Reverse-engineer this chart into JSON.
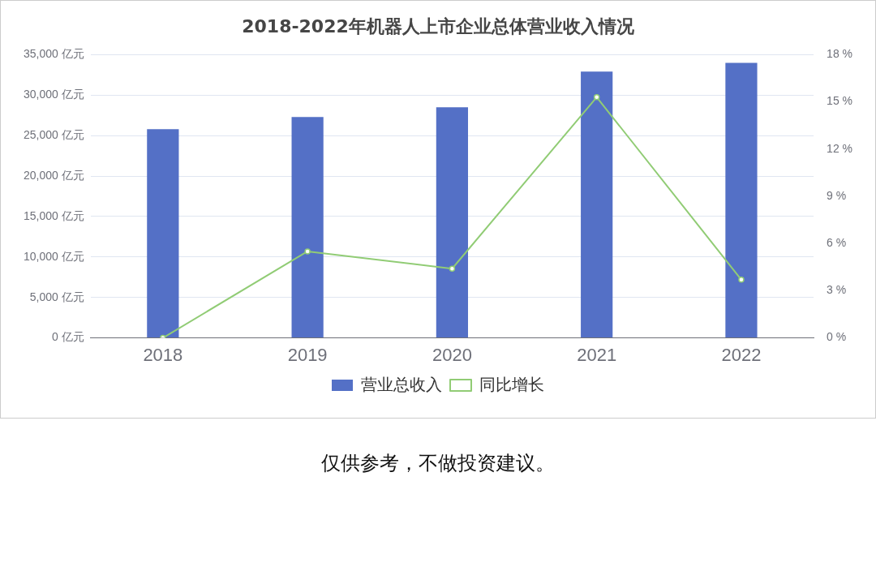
{
  "chart_data": {
    "type": "bar",
    "title": "2018-2022年机器人上市企业总体营业收入情况",
    "categories": [
      "2018",
      "2019",
      "2020",
      "2021",
      "2022"
    ],
    "series": [
      {
        "name": "营业总收入",
        "color": "#5470c6",
        "values": [
          25800,
          27300,
          28500,
          32900,
          34000
        ]
      },
      {
        "name": "同比增长",
        "type": "line",
        "axis": "y2",
        "color": "#91cc75",
        "values": [
          0,
          5.5,
          4.4,
          15.3,
          3.7
        ]
      }
    ],
    "ylim": [
      0,
      35000
    ],
    "yticks": [
      {
        "value": 0,
        "label": "0 亿元"
      },
      {
        "value": 5000,
        "label": "5,000 亿元"
      },
      {
        "value": 10000,
        "label": "10,000 亿元"
      },
      {
        "value": 15000,
        "label": "15,000 亿元"
      },
      {
        "value": 20000,
        "label": "20,000 亿元"
      },
      {
        "value": 25000,
        "label": "25,000 亿元"
      },
      {
        "value": 30000,
        "label": "30,000 亿元"
      },
      {
        "value": 35000,
        "label": "35,000 亿元"
      }
    ],
    "y2lim": [
      0,
      18
    ],
    "y2ticks": [
      {
        "value": 0,
        "label": "0 %"
      },
      {
        "value": 3,
        "label": "3 %"
      },
      {
        "value": 6,
        "label": "6 %"
      },
      {
        "value": 9,
        "label": "9 %"
      },
      {
        "value": 12,
        "label": "12 %"
      },
      {
        "value": 15,
        "label": "15 %"
      },
      {
        "value": 18,
        "label": "18 %"
      }
    ],
    "grid": "y",
    "legend": "bottom",
    "marker": "circle",
    "line_style": "solid",
    "annotations": [
      "仅供参考，不做投资建议。"
    ]
  }
}
